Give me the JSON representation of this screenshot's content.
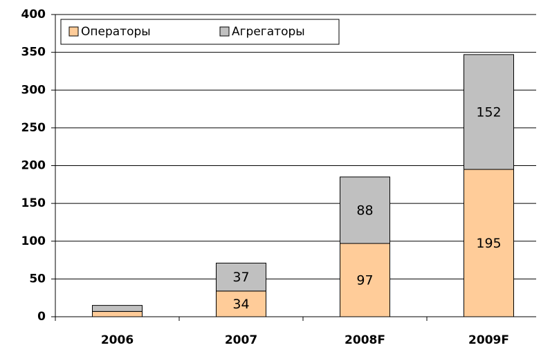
{
  "chart_data": {
    "type": "stacked_bar",
    "categories": [
      "2006",
      "2007",
      "2008F",
      "2009F"
    ],
    "series": [
      {
        "name": "Операторы",
        "color": "#ffcc99",
        "values": [
          7,
          34,
          97,
          195
        ],
        "value_labels": [
          null,
          "34",
          "97",
          "195"
        ]
      },
      {
        "name": "Агрегаторы",
        "color": "#c0c0c0",
        "values": [
          8,
          37,
          88,
          152
        ],
        "value_labels": [
          null,
          "37",
          "88",
          "152"
        ]
      }
    ],
    "ylim": [
      0,
      400
    ],
    "yticks": [
      0,
      50,
      100,
      150,
      200,
      250,
      300,
      350,
      400
    ],
    "grid": true
  }
}
